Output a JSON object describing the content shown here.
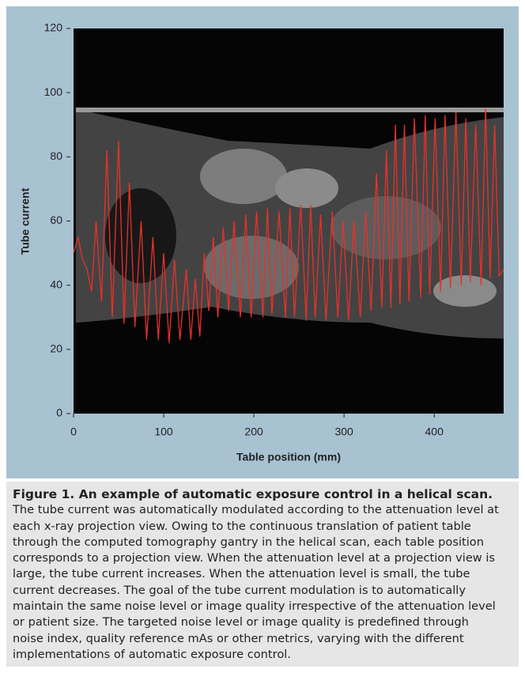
{
  "chart_data": {
    "type": "line",
    "xlabel": "Table position (mm)",
    "ylabel": "Tube current",
    "xlim": [
      0,
      477
    ],
    "ylim": [
      0,
      120
    ],
    "xticks": [
      0,
      100,
      200,
      300,
      400
    ],
    "yticks": [
      0,
      20,
      40,
      60,
      80,
      100,
      120
    ],
    "color": "#e8312a",
    "grid": false,
    "x": [
      0,
      5,
      10,
      15,
      20,
      25,
      31,
      37,
      43,
      50,
      56,
      62,
      68,
      75,
      81,
      88,
      94,
      100,
      106,
      112,
      118,
      125,
      130,
      135,
      140,
      145,
      150,
      155,
      160,
      166,
      172,
      178,
      185,
      191,
      197,
      203,
      210,
      215,
      220,
      228,
      235,
      240,
      245,
      252,
      258,
      263,
      268,
      274,
      280,
      287,
      293,
      299,
      305,
      311,
      318,
      324,
      330,
      336,
      342,
      347,
      352,
      357,
      362,
      367,
      372,
      378,
      385,
      390,
      395,
      401,
      407,
      412,
      418,
      424,
      430,
      435,
      440,
      446,
      452,
      457,
      462,
      467,
      472,
      477
    ],
    "values": [
      50,
      55,
      48,
      45,
      38,
      60,
      35,
      82,
      30,
      85,
      28,
      72,
      27,
      60,
      23,
      55,
      23,
      50,
      22,
      48,
      23,
      45,
      23,
      42,
      24,
      50,
      32,
      55,
      30,
      58,
      32,
      60,
      30,
      62,
      30,
      63,
      30,
      64,
      31,
      63,
      30,
      64,
      30,
      65,
      29,
      65,
      30,
      62,
      29,
      63,
      30,
      60,
      29,
      60,
      30,
      63,
      32,
      75,
      33,
      82,
      33,
      90,
      34,
      90,
      35,
      92,
      36,
      93,
      37,
      92,
      38,
      93,
      39,
      94,
      40,
      92,
      41,
      90,
      40,
      95,
      42,
      90,
      43,
      45
    ]
  },
  "caption": {
    "title": "Figure 1. An example of automatic exposure control in a helical scan.",
    "lines": [
      "The tube current was automatically modulated according to the attenuation level at",
      "each x-ray projection view. Owing to the continuous translation of patient table",
      "through the computed tomography gantry in the helical scan, each table position",
      "corresponds to a projection view. When the attenuation level at a projection view is",
      "large, the tube current increases. When the attenuation level is small, the tube",
      "current decreases. The goal of the tube current modulation is to automatically",
      "maintain the same noise level or image quality irrespective of the attenuation level",
      "or patient size. The targeted noise level or image quality is predefined through",
      "noise index, quality reference mAs or other metrics, varying with the different",
      "implementations of automatic exposure control."
    ]
  }
}
